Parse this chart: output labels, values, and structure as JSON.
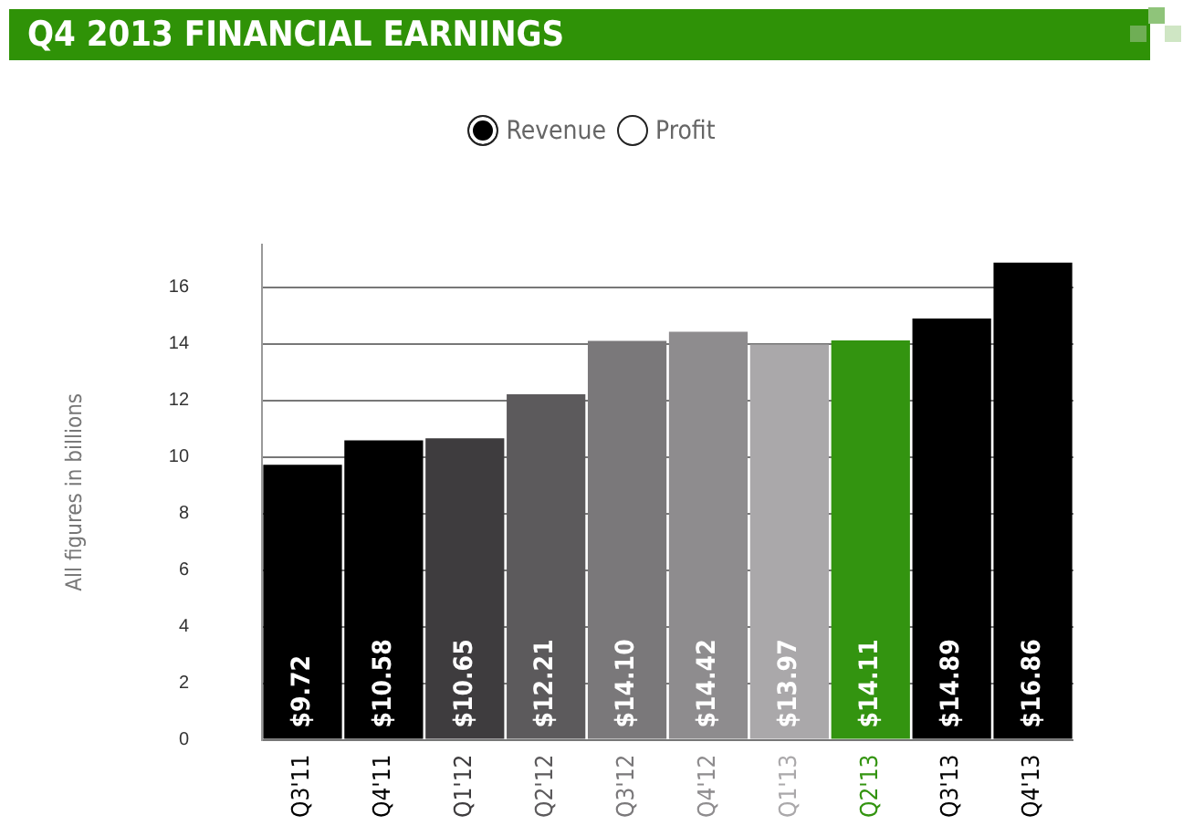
{
  "chart_data": {
    "type": "bar",
    "title": "Q4 2013 FINANCIAL EARNINGS",
    "ylabel": "All figures in billions",
    "categories": [
      "Q3'11",
      "Q4'11",
      "Q1'12",
      "Q2'12",
      "Q3'12",
      "Q4'12",
      "Q1'13",
      "Q2'13",
      "Q3'13",
      "Q4'13"
    ],
    "series": [
      {
        "name": "Revenue",
        "color": "#000000",
        "colors": [
          "#000000",
          "#000000",
          "#3e3c3e",
          "#5c5a5c",
          "#7a787a",
          "#8e8c8e",
          "#aaa8aa",
          "#339410",
          "#000000",
          "#000000"
        ],
        "values": [
          9.72,
          10.58,
          10.65,
          12.21,
          14.1,
          14.42,
          13.97,
          14.11,
          14.89,
          16.86
        ],
        "value_labels": [
          "$9.72",
          "$10.58",
          "$10.65",
          "$12.21",
          "$14.10",
          "$14.42",
          "$13.97",
          "$14.11",
          "$14.89",
          "$16.86"
        ]
      },
      {
        "name": "Profit",
        "color": "#ffffff",
        "values": [
          null,
          null,
          null,
          null,
          null,
          null,
          null,
          null,
          null,
          null
        ]
      }
    ],
    "ylim": [
      0,
      17.5
    ],
    "yticks": [
      0,
      2,
      4,
      6,
      8,
      10,
      12,
      14,
      16
    ],
    "grid": "y",
    "legend": "top"
  }
}
